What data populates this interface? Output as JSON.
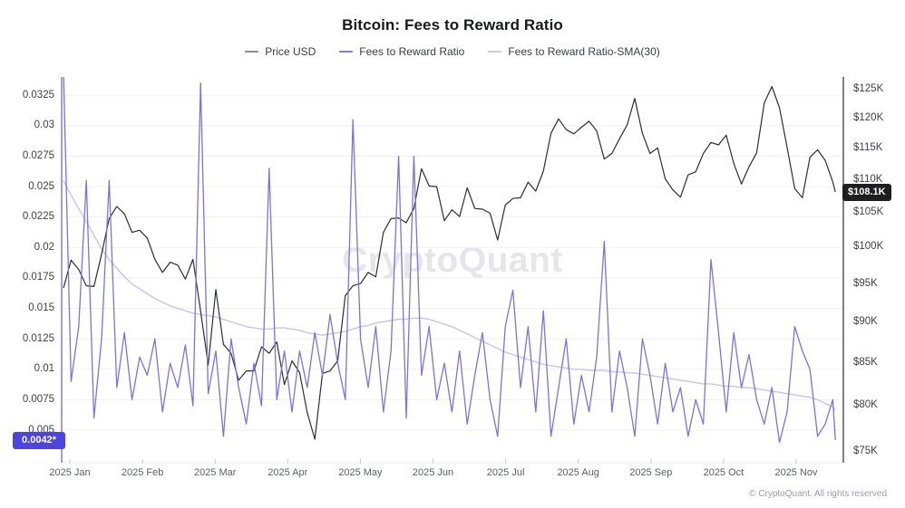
{
  "title": "Bitcoin: Fees to Reward Ratio",
  "legend": [
    {
      "label": "Price USD",
      "swatch_color": "#8a8d93"
    },
    {
      "label": "Fees to Reward Ratio",
      "swatch_color": "#8479df"
    },
    {
      "label": "Fees to Reward Ratio-SMA(30)",
      "swatch_color": "#ccc7ed"
    }
  ],
  "watermark": "CryptoQuant",
  "footer_text": "© CryptoQuant. All rights reserved",
  "badges": {
    "left_current_value": "0.0042*",
    "right_current_value": "$108.1K",
    "left_badge_color": "#4f43e0",
    "right_badge_color": "#1f1f1f"
  },
  "axes": {
    "left_tick_labels": [
      "0.0325",
      "0.03",
      "0.0275",
      "0.025",
      "0.0225",
      "0.02",
      "0.0175",
      "0.015",
      "0.0125",
      "0.01",
      "0.0075",
      "0.005"
    ],
    "right_tick_labels": [
      "$125K",
      "$120K",
      "$115K",
      "$110K",
      "$105K",
      "$100K",
      "$95K",
      "$90K",
      "$85K",
      "$80K",
      "$75K"
    ],
    "x_tick_labels": [
      "2025 Jan",
      "2025 Feb",
      "2025 Mar",
      "2025 Apr",
      "2025 May",
      "2025 Jun",
      "2025 Jul",
      "2025 Aug",
      "2025 Sep",
      "2025 Oct",
      "2025 Nov"
    ]
  },
  "chart_data": {
    "type": "line",
    "title": "Bitcoin: Fees to Reward Ratio",
    "grid": true,
    "legend_position": "top",
    "left_axis": {
      "scale": "linear",
      "min": 0.0024,
      "max": 0.034,
      "ticks": [
        0.0325,
        0.03,
        0.0275,
        0.025,
        0.0225,
        0.02,
        0.0175,
        0.015,
        0.0125,
        0.01,
        0.0075,
        0.005
      ]
    },
    "right_axis": {
      "scale": "log",
      "unit": "USD thousands",
      "min": 73.9,
      "max": 127.1,
      "ticks": [
        125,
        120,
        115,
        110,
        105,
        100,
        95,
        90,
        85,
        80,
        75
      ]
    },
    "last_values": {
      "fees_to_reward_ratio": 0.0042,
      "price_usd_thousands": 108.1
    },
    "x": [
      "2025-01-01",
      "2025-01-04",
      "2025-01-07",
      "2025-01-10",
      "2025-01-13",
      "2025-01-16",
      "2025-01-19",
      "2025-01-22",
      "2025-01-25",
      "2025-01-28",
      "2025-01-31",
      "2025-02-03",
      "2025-02-06",
      "2025-02-09",
      "2025-02-12",
      "2025-02-15",
      "2025-02-18",
      "2025-02-21",
      "2025-02-24",
      "2025-02-27",
      "2025-03-02",
      "2025-03-05",
      "2025-03-08",
      "2025-03-11",
      "2025-03-14",
      "2025-03-17",
      "2025-03-20",
      "2025-03-23",
      "2025-03-26",
      "2025-03-29",
      "2025-04-01",
      "2025-04-04",
      "2025-04-07",
      "2025-04-10",
      "2025-04-13",
      "2025-04-16",
      "2025-04-19",
      "2025-04-22",
      "2025-04-25",
      "2025-04-28",
      "2025-05-01",
      "2025-05-04",
      "2025-05-07",
      "2025-05-10",
      "2025-05-13",
      "2025-05-16",
      "2025-05-19",
      "2025-05-22",
      "2025-05-25",
      "2025-05-28",
      "2025-05-31",
      "2025-06-03",
      "2025-06-06",
      "2025-06-09",
      "2025-06-12",
      "2025-06-15",
      "2025-06-18",
      "2025-06-21",
      "2025-06-24",
      "2025-06-27",
      "2025-06-30",
      "2025-07-03",
      "2025-07-06",
      "2025-07-09",
      "2025-07-12",
      "2025-07-15",
      "2025-07-18",
      "2025-07-21",
      "2025-07-24",
      "2025-07-27",
      "2025-07-30",
      "2025-08-02",
      "2025-08-05",
      "2025-08-08",
      "2025-08-11",
      "2025-08-14",
      "2025-08-17",
      "2025-08-20",
      "2025-08-23",
      "2025-08-26",
      "2025-08-29",
      "2025-09-01",
      "2025-09-04",
      "2025-09-07",
      "2025-09-10",
      "2025-09-13",
      "2025-09-16",
      "2025-09-19",
      "2025-09-22",
      "2025-09-25",
      "2025-09-28",
      "2025-10-01",
      "2025-10-04",
      "2025-10-07",
      "2025-10-10",
      "2025-10-13",
      "2025-10-16",
      "2025-10-19",
      "2025-10-22",
      "2025-10-25",
      "2025-10-28",
      "2025-10-31",
      "2025-11-01"
    ],
    "series": [
      {
        "name": "Price USD",
        "axis": "right",
        "color": "#2e2f31",
        "values": [
          94.4,
          98.2,
          96.9,
          94.7,
          94.6,
          99.0,
          104.1,
          105.9,
          104.8,
          102.1,
          102.4,
          101.3,
          98.3,
          96.5,
          97.9,
          97.5,
          95.6,
          98.3,
          91.4,
          84.7,
          94.2,
          87.2,
          86.1,
          82.9,
          84.0,
          84.0,
          86.9,
          86.1,
          87.5,
          82.4,
          85.2,
          83.8,
          79.2,
          76.3,
          83.7,
          84.0,
          85.2,
          93.4,
          94.7,
          95.0,
          96.5,
          95.9,
          102.1,
          104.1,
          104.2,
          103.5,
          105.6,
          111.7,
          109.0,
          108.9,
          103.8,
          105.4,
          104.4,
          108.7,
          105.6,
          105.5,
          104.9,
          101.0,
          106.1,
          107.1,
          107.2,
          109.6,
          108.2,
          111.3,
          117.4,
          119.8,
          118.0,
          117.3,
          118.4,
          119.4,
          117.8,
          113.2,
          114.1,
          116.5,
          118.8,
          123.3,
          117.4,
          114.1,
          115.0,
          110.1,
          108.4,
          107.3,
          110.7,
          111.2,
          114.1,
          115.9,
          115.5,
          117.1,
          112.5,
          109.3,
          112.0,
          114.2,
          122.5,
          125.4,
          121.7,
          115.1,
          108.6,
          107.2,
          113.5,
          114.7,
          113.0,
          109.6,
          108.1
        ]
      },
      {
        "name": "Fees to Reward Ratio",
        "axis": "left",
        "color": "#7d72de",
        "values": [
          0.0345,
          0.009,
          0.0135,
          0.0255,
          0.006,
          0.0125,
          0.0255,
          0.0085,
          0.013,
          0.0075,
          0.011,
          0.0095,
          0.0125,
          0.0065,
          0.0105,
          0.0085,
          0.012,
          0.007,
          0.0335,
          0.008,
          0.0115,
          0.0045,
          0.0125,
          0.0085,
          0.0055,
          0.0105,
          0.007,
          0.0265,
          0.0075,
          0.0115,
          0.0065,
          0.0115,
          0.0085,
          0.013,
          0.0095,
          0.0145,
          0.0105,
          0.0075,
          0.0305,
          0.0125,
          0.0085,
          0.0135,
          0.0065,
          0.0115,
          0.0275,
          0.006,
          0.0275,
          0.0095,
          0.0135,
          0.0075,
          0.0105,
          0.0065,
          0.0115,
          0.0055,
          0.0095,
          0.013,
          0.0075,
          0.0045,
          0.0135,
          0.0165,
          0.0085,
          0.0135,
          0.0065,
          0.0148,
          0.0045,
          0.0085,
          0.0125,
          0.0055,
          0.0095,
          0.0065,
          0.011,
          0.0205,
          0.0065,
          0.0115,
          0.0085,
          0.0045,
          0.0125,
          0.0095,
          0.0055,
          0.0105,
          0.0065,
          0.0085,
          0.0045,
          0.0075,
          0.0055,
          0.019,
          0.013,
          0.0065,
          0.013,
          0.0085,
          0.0112,
          0.0075,
          0.0055,
          0.0085,
          0.004,
          0.0065,
          0.0135,
          0.0115,
          0.01,
          0.0045,
          0.0055,
          0.0075,
          0.0042
        ]
      },
      {
        "name": "Fees to Reward Ratio-SMA(30)",
        "axis": "left",
        "color": "#c9c3ec",
        "values": [
          0.0255,
          0.0243,
          0.0232,
          0.0221,
          0.021,
          0.0199,
          0.019,
          0.0183,
          0.0176,
          0.017,
          0.0166,
          0.0162,
          0.0158,
          0.0155,
          0.0152,
          0.015,
          0.0148,
          0.0146,
          0.0145,
          0.0144,
          0.0143,
          0.0141,
          0.0139,
          0.0137,
          0.0135,
          0.0134,
          0.0133,
          0.0133,
          0.0134,
          0.0134,
          0.0133,
          0.0132,
          0.013,
          0.0129,
          0.0128,
          0.0129,
          0.013,
          0.0131,
          0.0133,
          0.0135,
          0.0136,
          0.0138,
          0.0139,
          0.014,
          0.0141,
          0.0141,
          0.0142,
          0.0142,
          0.0141,
          0.0139,
          0.0137,
          0.0135,
          0.0132,
          0.0129,
          0.0126,
          0.0123,
          0.012,
          0.0117,
          0.0114,
          0.0112,
          0.011,
          0.0108,
          0.0106,
          0.0104,
          0.0103,
          0.0102,
          0.0101,
          0.01,
          0.01,
          0.0099,
          0.0099,
          0.0099,
          0.0098,
          0.0098,
          0.0097,
          0.0097,
          0.0096,
          0.0095,
          0.0094,
          0.0093,
          0.0092,
          0.0091,
          0.009,
          0.0089,
          0.0088,
          0.0088,
          0.0087,
          0.0086,
          0.0086,
          0.0085,
          0.0085,
          0.0084,
          0.0083,
          0.0082,
          0.0081,
          0.008,
          0.0079,
          0.0078,
          0.0077,
          0.0075,
          0.0072,
          0.0069,
          0.0066
        ]
      }
    ]
  },
  "colors": {
    "left_spine": "#7d72de",
    "right_spine": "#4a4d52",
    "gridline": "#f0f0f1",
    "x_tick_mark": "#c9cacd",
    "bottom_line": "#ececee"
  }
}
